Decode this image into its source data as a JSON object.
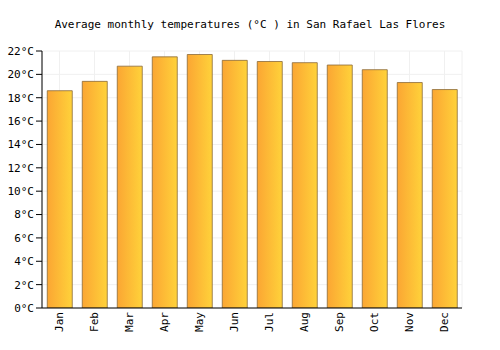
{
  "chart_data": {
    "type": "bar",
    "title": "Average monthly temperatures (°C ) in San Rafael Las Flores",
    "categories": [
      "Jan",
      "Feb",
      "Mar",
      "Apr",
      "May",
      "Jun",
      "Jul",
      "Aug",
      "Sep",
      "Oct",
      "Nov",
      "Dec"
    ],
    "values": [
      18.6,
      19.4,
      20.7,
      21.5,
      21.7,
      21.2,
      21.1,
      21.0,
      20.8,
      20.4,
      19.3,
      18.7
    ],
    "color": "#fba633",
    "ylim": [
      0,
      22
    ],
    "yticks": [
      {
        "value": 0,
        "label": "0°C"
      },
      {
        "value": 2,
        "label": "2°C"
      },
      {
        "value": 4,
        "label": "4°C"
      },
      {
        "value": 6,
        "label": "6°C"
      },
      {
        "value": 8,
        "label": "8°C"
      },
      {
        "value": 10,
        "label": "10°C"
      },
      {
        "value": 12,
        "label": "12°C"
      },
      {
        "value": 14,
        "label": "14°C"
      },
      {
        "value": 16,
        "label": "16°C"
      },
      {
        "value": 18,
        "label": "18°C"
      },
      {
        "value": 20,
        "label": "20°C"
      },
      {
        "value": 22,
        "label": "22°C"
      }
    ],
    "grid": true
  }
}
